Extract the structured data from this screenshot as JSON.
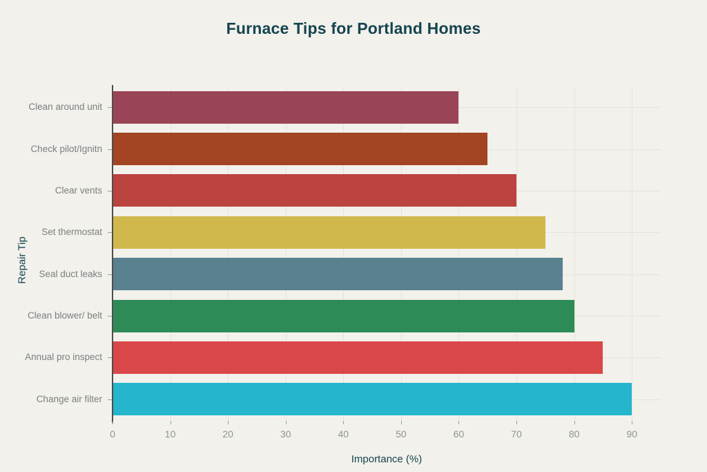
{
  "chart_data": {
    "type": "bar",
    "orientation": "horizontal",
    "title": "Furnace Tips for Portland Homes",
    "xlabel": "Importance (%)",
    "ylabel": "Repair Tip",
    "categories": [
      "Clean around unit",
      "Check pilot/Ignitn",
      "Clear vents",
      "Set thermostat",
      "Seal duct leaks",
      "Clean blower/ belt",
      "Annual pro inspect",
      "Change air filter"
    ],
    "values": [
      60,
      65,
      70,
      75,
      78,
      80,
      85,
      90
    ],
    "bar_colors": [
      "#9a4557",
      "#a34423",
      "#bb4340",
      "#d0b84d",
      "#59818f",
      "#2e8b57",
      "#da4748",
      "#25b6cd"
    ],
    "xticks": [
      0,
      10,
      20,
      30,
      40,
      50,
      60,
      70,
      80,
      90
    ],
    "xlim": [
      0,
      95
    ],
    "grid": "on",
    "legend": "none"
  },
  "colors": {
    "background": "#f2f1eb",
    "grid": "#e4e4dd",
    "axis_line": "#4d4d4d",
    "tick_mark": "#9a9d9e",
    "title_text": "#154450",
    "axis_label_text": "#154450",
    "numeric_tick_text": "#8f9294",
    "category_tick_text": "#7b7f81"
  }
}
